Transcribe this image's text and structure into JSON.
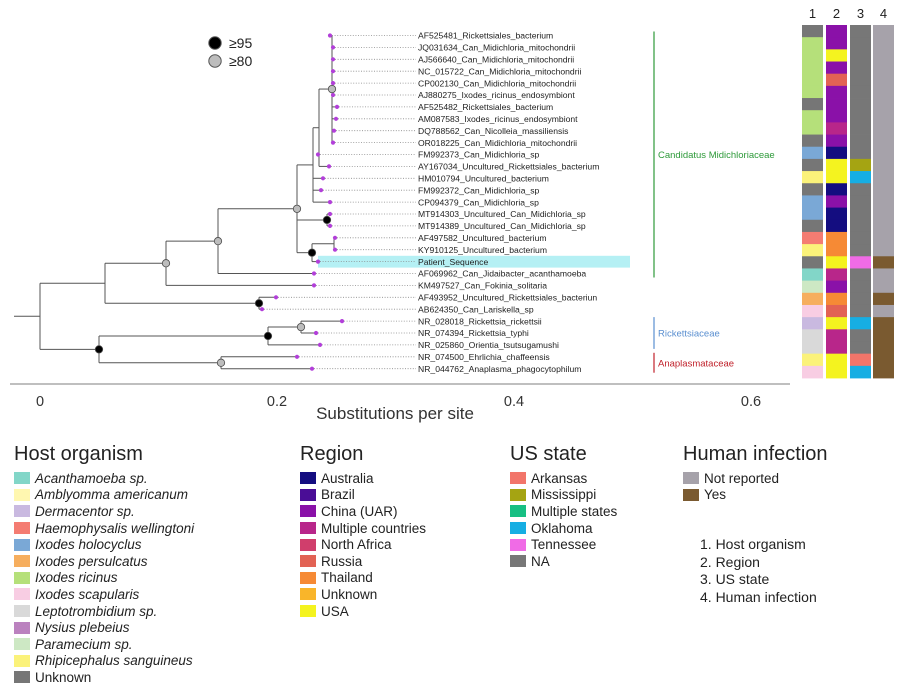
{
  "tree": {
    "taxa": [
      "AF525481_Rickettsiales_bacterium",
      "JQ031634_Can_Midichloria_mitochondrii",
      "AJ566640_Can_Midichloria_mitochondrii",
      "NC_015722_Can_Midichloria_mitochondrii",
      "CP002130_Can_Midichloria_mitochondrii",
      "AJ880275_Ixodes_ricinus_endosymbiont",
      "AF525482_Rickettsiales_bacterium",
      "AM087583_Ixodes_ricinus_endosymbiont",
      "DQ788562_Can_Nicolleia_massiliensis",
      "OR018225_Can_Midichloria_mitochondrii",
      "FM992373_Can_Midichloria_sp",
      "AY167034_Uncultured_Rickettsiales_bacterium",
      "HM010794_Uncultured_bacterium",
      "FM992372_Can_Midichloria_sp",
      "CP094379_Can_Midichloria_sp",
      "MT914303_Uncultured_Can_Midichloria_sp",
      "MT914389_Uncultured_Can_Midichloria_sp",
      "AF497582_Uncultured_bacterium",
      "KY910125_Uncultured_bacterium",
      "Patient_Sequence",
      "AF069962_Can_Jidaibacter_acanthamoeba",
      "KM497527_Can_Fokinia_solitaria",
      "AF493952_Uncultured_Rickettsiales_bacteriun",
      "AB624350_Can_Lariskella_sp",
      "NR_028018_Rickettsia_rickettsii",
      "NR_074394_Rickettsia_typhi",
      "NR_025860_Orientia_tsutsugamushi",
      "NR_074500_Ehrlichia_chaffeensis",
      "NR_044762_Anaplasma_phagocytophilum"
    ],
    "highlighted_taxon": "Patient_Sequence",
    "families": [
      {
        "name": "Candidatus Midichloriaceae",
        "color": "#2e9a3a"
      },
      {
        "name": "Rickettsiaceae",
        "color": "#5a8fd0"
      },
      {
        "name": "Anaplasmataceae",
        "color": "#c0202a"
      }
    ],
    "support_legend": [
      {
        "label": "≥95",
        "fill": "#000000"
      },
      {
        "label": "≥80",
        "fill": "#bdbdbd"
      }
    ],
    "branch_color": "#555555",
    "leaf_color": "#b23fd9"
  },
  "axis": {
    "label": "Substitutions per site",
    "ticks": [
      "0",
      "0.2",
      "0.4",
      "0.6"
    ]
  },
  "strip_headers": [
    "1",
    "2",
    "3",
    "4"
  ],
  "strips": {
    "host": [
      "Unknown",
      "Ixodes ricinus",
      "Ixodes ricinus",
      "Ixodes ricinus",
      "Ixodes ricinus",
      "Ixodes ricinus",
      "Unknown",
      "Ixodes ricinus",
      "Ixodes ricinus",
      "Unknown",
      "Ixodes holocyclus",
      "Unknown",
      "Rhipicephalus sanguineus",
      "Unknown",
      "Ixodes holocyclus",
      "Ixodes holocyclus",
      "Unknown",
      "Haemophysalis wellingtoni",
      "Rhipicephalus sanguineus",
      "Unknown",
      "Acanthamoeba sp.",
      "Paramecium sp.",
      "Ixodes persulcatus",
      "Ixodes scapularis",
      "Dermacentor sp.",
      "Leptotrombidium sp.",
      "Leptotrombidium sp.",
      "Rhipicephalus sanguineus",
      "Ixodes scapularis"
    ],
    "region": [
      "China (UAR)",
      "China (UAR)",
      "USA",
      "China (UAR)",
      "Russia",
      "China (UAR)",
      "China (UAR)",
      "China (UAR)",
      "Multiple countries",
      "China (UAR)",
      "Australia",
      "USA",
      "USA",
      "Australia",
      "China (UAR)",
      "Australia",
      "Australia",
      "Thailand",
      "Thailand",
      "USA",
      "Multiple countries",
      "China (UAR)",
      "Thailand",
      "Russia",
      "USA",
      "Multiple countries",
      "Multiple countries",
      "USA",
      "USA"
    ],
    "state": [
      "NA",
      "NA",
      "NA",
      "NA",
      "NA",
      "NA",
      "NA",
      "NA",
      "NA",
      "NA",
      "NA",
      "Mississippi",
      "Oklahoma",
      "NA",
      "NA",
      "NA",
      "NA",
      "NA",
      "NA",
      "Tennessee",
      "NA",
      "NA",
      "NA",
      "NA",
      "Oklahoma",
      "NA",
      "NA",
      "Arkansas",
      "Oklahoma"
    ],
    "human": [
      "Not reported",
      "Not reported",
      "Not reported",
      "Not reported",
      "Not reported",
      "Not reported",
      "Not reported",
      "Not reported",
      "Not reported",
      "Not reported",
      "Not reported",
      "Not reported",
      "Not reported",
      "Not reported",
      "Not reported",
      "Not reported",
      "Not reported",
      "Not reported",
      "Not reported",
      "Yes",
      "Not reported",
      "Not reported",
      "Yes",
      "Not reported",
      "Yes",
      "Yes",
      "Yes",
      "Yes",
      "Yes"
    ]
  },
  "legends": {
    "host": {
      "title": "Host organism",
      "items": [
        {
          "label": "Acanthamoeba sp.",
          "color": "#82d6c8",
          "italic": true
        },
        {
          "label": "Amblyomma americanum",
          "color": "#fff7b0",
          "italic": true
        },
        {
          "label": "Dermacentor sp.",
          "color": "#c9b9e0",
          "italic": true
        },
        {
          "label": "Haemophysalis wellingtoni",
          "color": "#f47c72",
          "italic": true
        },
        {
          "label": "Ixodes holocyclus",
          "color": "#7aa8d6",
          "italic": true
        },
        {
          "label": "Ixodes persulcatus",
          "color": "#f6ae5e",
          "italic": true
        },
        {
          "label": "Ixodes ricinus",
          "color": "#b5e07a",
          "italic": true
        },
        {
          "label": "Ixodes scapularis",
          "color": "#f8cde3",
          "italic": true
        },
        {
          "label": "Leptotrombidium sp.",
          "color": "#d9d9d9",
          "italic": true
        },
        {
          "label": "Nysius plebeius",
          "color": "#bb82bf",
          "italic": true
        },
        {
          "label": "Paramecium sp.",
          "color": "#cde8c4",
          "italic": true
        },
        {
          "label": "Rhipicephalus sanguineus",
          "color": "#fbf27a",
          "italic": true
        },
        {
          "label": "Unknown",
          "color": "#767676",
          "italic": false
        }
      ]
    },
    "region": {
      "title": "Region",
      "items": [
        {
          "label": "Australia",
          "color": "#140d80"
        },
        {
          "label": "Brazil",
          "color": "#4a0d96"
        },
        {
          "label": "China (UAR)",
          "color": "#8a11a8"
        },
        {
          "label": "Multiple countries",
          "color": "#b8268a"
        },
        {
          "label": "North Africa",
          "color": "#d03e6c"
        },
        {
          "label": "Russia",
          "color": "#e26254"
        },
        {
          "label": "Thailand",
          "color": "#f68a35"
        },
        {
          "label": "Unknown",
          "color": "#f9b52a"
        },
        {
          "label": "USA",
          "color": "#f4f31f"
        }
      ]
    },
    "state": {
      "title": "US state",
      "items": [
        {
          "label": "Arkansas",
          "color": "#f2756a"
        },
        {
          "label": "Mississippi",
          "color": "#a5a412"
        },
        {
          "label": "Multiple states",
          "color": "#17bf83"
        },
        {
          "label": "Oklahoma",
          "color": "#16aee3"
        },
        {
          "label": "Tennessee",
          "color": "#f06be6"
        },
        {
          "label": "NA",
          "color": "#777777"
        }
      ]
    },
    "human": {
      "title": "Human infection",
      "items": [
        {
          "label": "Not reported",
          "color": "#a6a2aa"
        },
        {
          "label": "Yes",
          "color": "#7a5a30"
        }
      ]
    },
    "key": [
      "1.  Host organism",
      "2.  Region",
      "3.  US state",
      "4.  Human infection"
    ]
  }
}
